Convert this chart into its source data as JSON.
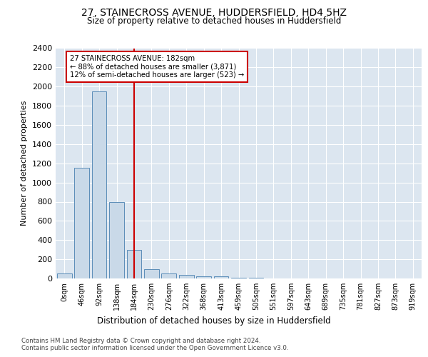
{
  "title_line1": "27, STAINECROSS AVENUE, HUDDERSFIELD, HD4 5HZ",
  "title_line2": "Size of property relative to detached houses in Huddersfield",
  "xlabel": "Distribution of detached houses by size in Huddersfield",
  "ylabel": "Number of detached properties",
  "categories": [
    "0sqm",
    "46sqm",
    "92sqm",
    "138sqm",
    "184sqm",
    "230sqm",
    "276sqm",
    "322sqm",
    "368sqm",
    "413sqm",
    "459sqm",
    "505sqm",
    "551sqm",
    "597sqm",
    "643sqm",
    "689sqm",
    "735sqm",
    "781sqm",
    "827sqm",
    "873sqm",
    "919sqm"
  ],
  "values": [
    50,
    1150,
    1950,
    800,
    300,
    100,
    50,
    35,
    20,
    20,
    10,
    5,
    2,
    1,
    1,
    0,
    0,
    0,
    0,
    0,
    0
  ],
  "bar_color": "#c9d9e8",
  "bar_edge_color": "#5b8db8",
  "annotation_text": "27 STAINECROSS AVENUE: 182sqm\n← 88% of detached houses are smaller (3,871)\n12% of semi-detached houses are larger (523) →",
  "vline_color": "#cc0000",
  "annotation_box_color": "#cc0000",
  "ylim": [
    0,
    2400
  ],
  "yticks": [
    0,
    200,
    400,
    600,
    800,
    1000,
    1200,
    1400,
    1600,
    1800,
    2000,
    2200,
    2400
  ],
  "footer_line1": "Contains HM Land Registry data © Crown copyright and database right 2024.",
  "footer_line2": "Contains public sector information licensed under the Open Government Licence v3.0.",
  "fig_bg_color": "#ffffff",
  "plot_bg_color": "#dce6f0"
}
